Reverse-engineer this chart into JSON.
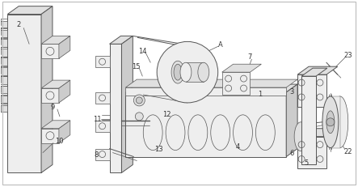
{
  "bg_color": "#ffffff",
  "line_color": "#999999",
  "dark_line": "#555555",
  "fill_light": "#eeeeee",
  "fill_mid": "#e0e0e0",
  "fill_dark": "#cccccc",
  "figsize": [
    4.43,
    2.32
  ],
  "dpi": 100,
  "border_color": "#cccccc"
}
